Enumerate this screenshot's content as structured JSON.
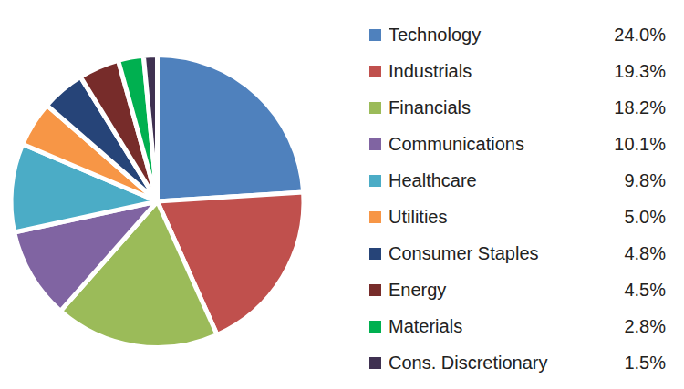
{
  "chart_data": {
    "type": "pie",
    "categories": [
      "Technology",
      "Industrials",
      "Financials",
      "Communications",
      "Healthcare",
      "Utilities",
      "Consumer Staples",
      "Energy",
      "Materials",
      "Cons. Discretionary"
    ],
    "values": [
      24.0,
      19.3,
      18.2,
      10.1,
      9.8,
      5.0,
      4.8,
      4.5,
      2.8,
      1.5
    ],
    "value_labels": [
      "24.0%",
      "19.3%",
      "18.2%",
      "10.1%",
      "9.8%",
      "5.0%",
      "4.8%",
      "4.5%",
      "2.8%",
      "1.5%"
    ],
    "colors": [
      "#4f81bd",
      "#c0504d",
      "#9bbb59",
      "#8064a2",
      "#4bacc6",
      "#f79646",
      "#264478",
      "#772c2a",
      "#00b050",
      "#3f3151"
    ],
    "legend": "right"
  }
}
